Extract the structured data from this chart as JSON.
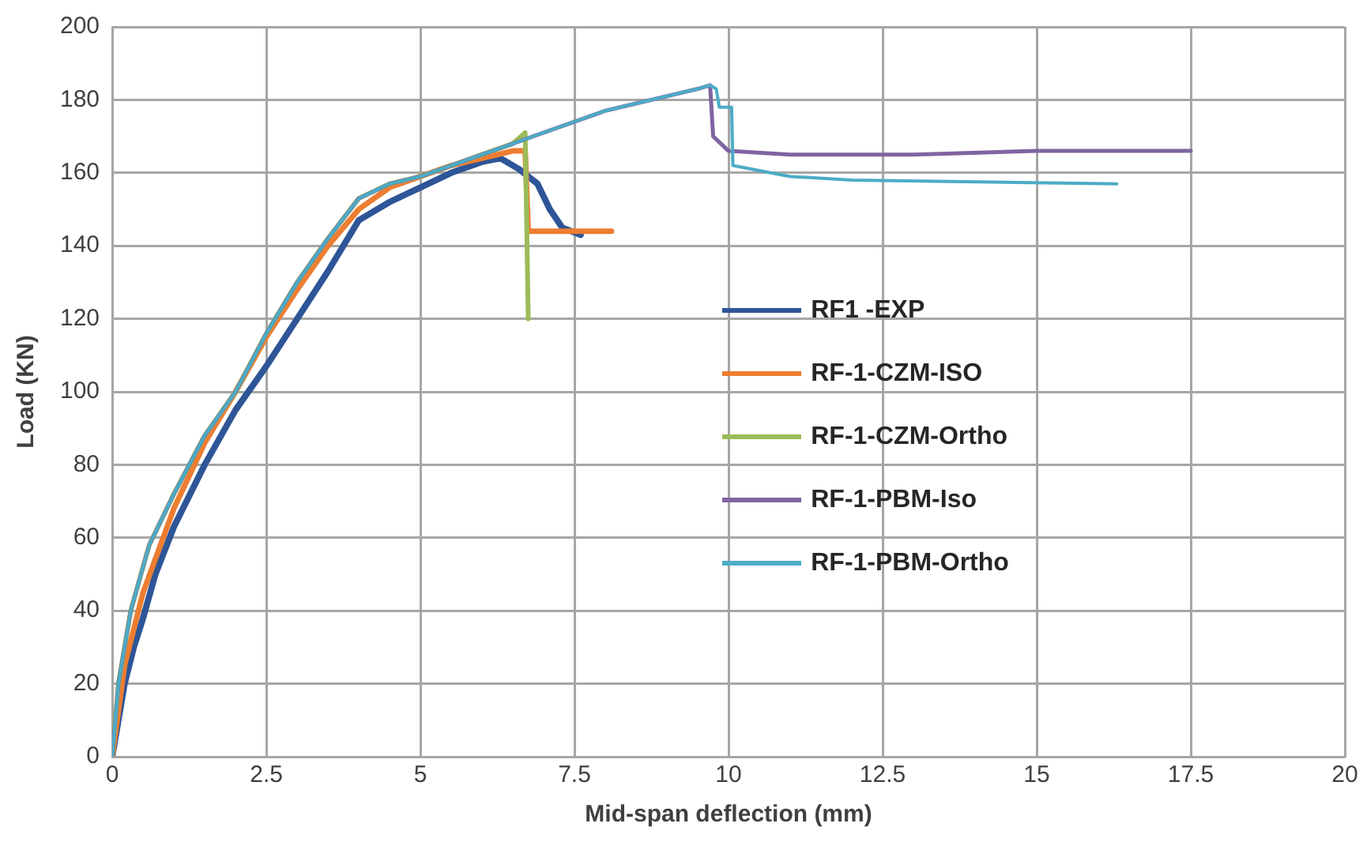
{
  "chart_data": {
    "type": "line",
    "xlabel": "Mid-span deflection (mm)",
    "ylabel": "Load (KN)",
    "xlim": [
      0,
      20
    ],
    "xticks": [
      0,
      2.5,
      5,
      7.5,
      10,
      12.5,
      15,
      17.5,
      20
    ],
    "ylim": [
      0,
      200
    ],
    "yticks": [
      0,
      20,
      40,
      60,
      80,
      100,
      120,
      140,
      160,
      180,
      200
    ],
    "grid": true,
    "legend": "right",
    "marker": "none",
    "line_style": "solid",
    "series": [
      {
        "name": "RF1 -EXP",
        "color": "#2e5597",
        "x": [
          0,
          0.1,
          0.2,
          0.35,
          0.5,
          0.7,
          1,
          1.5,
          2,
          2.5,
          3,
          3.5,
          4,
          4.5,
          5,
          5.5,
          6,
          6.3,
          6.6,
          6.9,
          7.1,
          7.3,
          7.6
        ],
        "values": [
          0,
          10,
          20,
          30,
          38,
          50,
          63,
          80,
          95,
          107,
          120,
          133,
          147,
          152,
          156,
          160,
          163,
          164,
          161,
          157,
          150,
          145,
          143
        ]
      },
      {
        "name": "RF-1-CZM-ISO",
        "color": "#ed7d31",
        "x": [
          0,
          0.2,
          0.5,
          1,
          1.5,
          2,
          2.5,
          3,
          3.5,
          4,
          4.5,
          5,
          5.5,
          6,
          6.5,
          6.7,
          6.75,
          8.1
        ],
        "values": [
          0,
          25,
          45,
          68,
          86,
          100,
          115,
          128,
          140,
          150,
          156,
          159,
          162,
          164,
          166,
          166,
          144,
          144
        ]
      },
      {
        "name": "RF-1-CZM-Ortho",
        "color": "#9bbb59",
        "x": [
          0,
          0.1,
          0.3,
          0.6,
          1,
          1.5,
          2,
          2.5,
          3,
          3.5,
          4,
          4.5,
          5,
          5.5,
          6,
          6.5,
          6.7,
          6.75
        ],
        "values": [
          0,
          20,
          40,
          58,
          72,
          88,
          100,
          116,
          130,
          142,
          153,
          157,
          159,
          162,
          165,
          168,
          171,
          120
        ]
      },
      {
        "name": "RF-1-PBM-Iso",
        "color": "#8064a2",
        "x": [
          0,
          0.1,
          0.3,
          0.6,
          1,
          1.5,
          2,
          2.5,
          3,
          3.5,
          4,
          4.5,
          5,
          5.5,
          6,
          6.5,
          7,
          7.5,
          8,
          8.5,
          9,
          9.5,
          9.7,
          9.75,
          10,
          11,
          13,
          15,
          17.5
        ],
        "values": [
          0,
          20,
          40,
          58,
          72,
          88,
          100,
          116,
          130,
          142,
          153,
          157,
          159,
          162,
          165,
          168,
          171,
          174,
          177,
          179,
          181,
          183,
          184,
          170,
          166,
          165,
          165,
          166,
          166
        ]
      },
      {
        "name": "RF-1-PBM-Ortho",
        "color": "#4bacc6",
        "x": [
          0,
          0.1,
          0.3,
          0.6,
          1,
          1.5,
          2,
          2.5,
          3,
          3.5,
          4,
          4.5,
          5,
          5.5,
          6,
          6.5,
          7,
          7.5,
          8,
          8.5,
          9,
          9.5,
          9.7,
          9.8,
          9.85,
          10.05,
          10.07,
          11,
          12,
          16.3
        ],
        "values": [
          0,
          20,
          40,
          58,
          72,
          88,
          100,
          116,
          130,
          142,
          153,
          157,
          159,
          162,
          165,
          168,
          171,
          174,
          177,
          179,
          181,
          183,
          184,
          183,
          178,
          178,
          162,
          159,
          158,
          157
        ]
      }
    ]
  }
}
